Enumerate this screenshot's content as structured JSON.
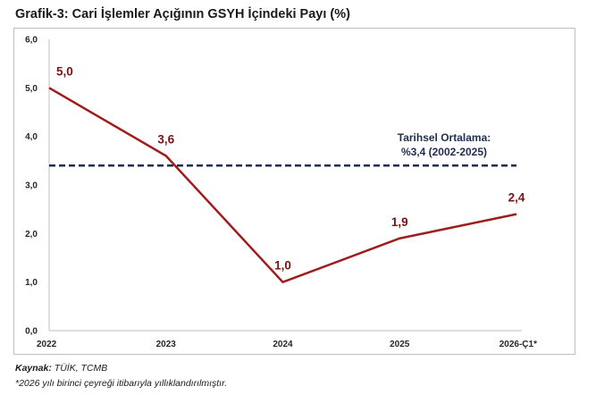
{
  "title": "Grafik-3: Cari İşlemler Açığının GSYH İçindeki Payı (%)",
  "chart_data": {
    "type": "line",
    "categories": [
      "2022",
      "2023",
      "2024",
      "2025",
      "2026-Ç1*"
    ],
    "series": [
      {
        "values": [
          5.0,
          3.6,
          1.0,
          1.9,
          2.4
        ],
        "color": "#a01c1c",
        "labels": [
          "5,0",
          "3,6",
          "1,0",
          "1,9",
          "2,4"
        ]
      }
    ],
    "reference_line": {
      "value": 3.4,
      "color": "#1f2d4f",
      "style": "dashed",
      "label_line1": "Tarihsel Ortalama:",
      "label_line2": "%3,4 (2002-2025)"
    },
    "ylim": [
      0,
      6
    ],
    "yticks": [
      "0,0",
      "1,0",
      "2,0",
      "3,0",
      "4,0",
      "5,0",
      "6,0"
    ],
    "grid": false,
    "legend": "none"
  },
  "footer": {
    "source_label": "Kaynak:",
    "source_text": " TÜİK, TCMB",
    "note": "*2026 yılı birinci çeyreği itibarıyla yıllıklandırılmıştır."
  }
}
